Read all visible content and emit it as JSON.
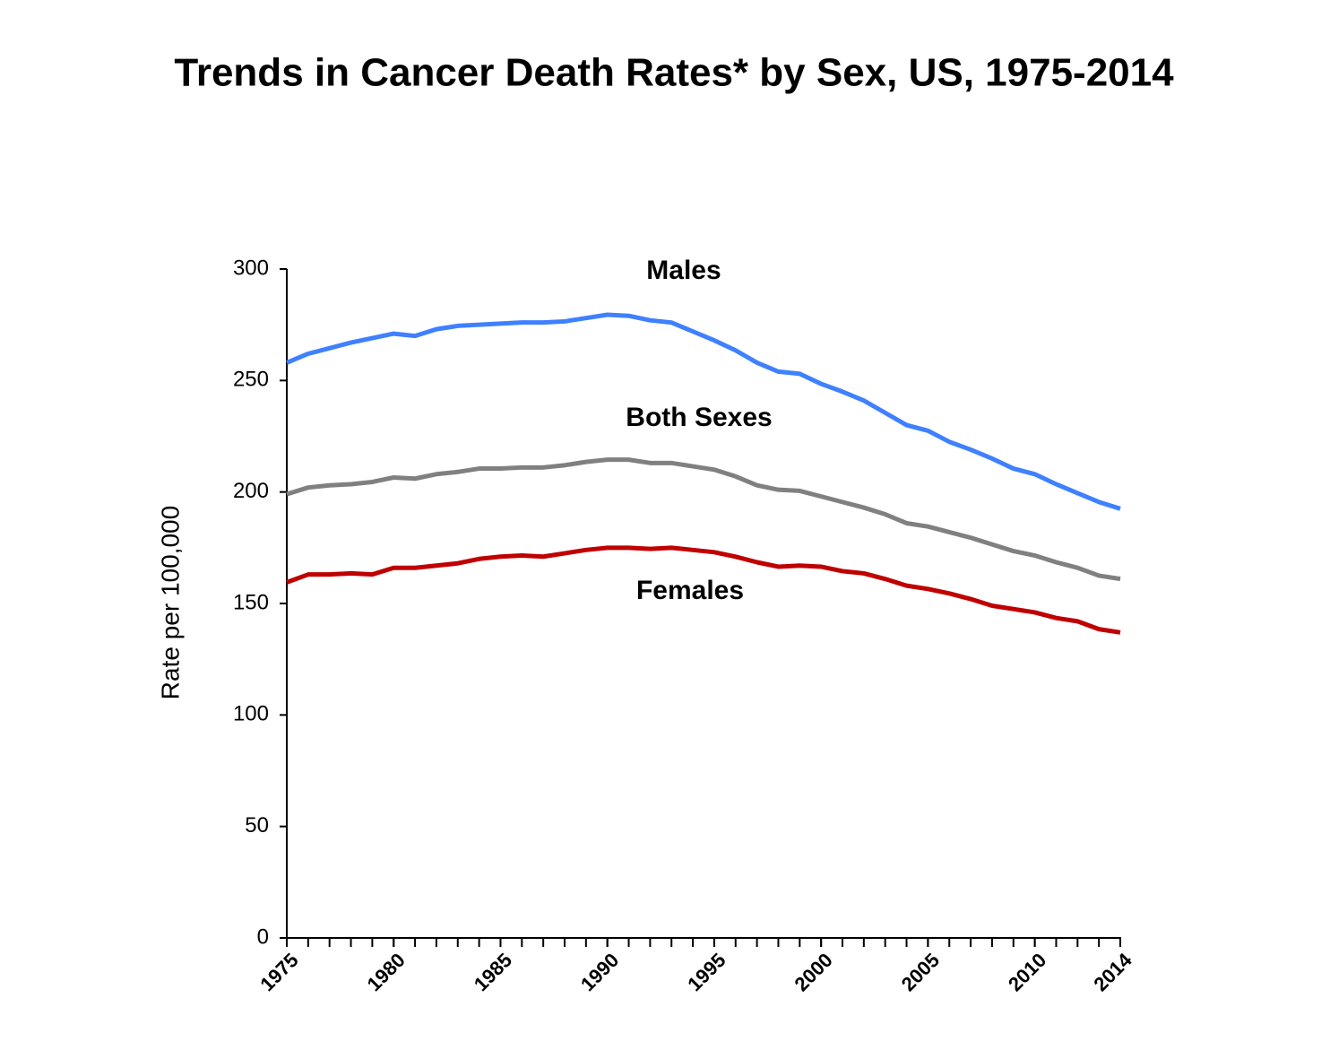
{
  "chart_data": {
    "type": "line",
    "title": "Trends in Cancer Death Rates* by Sex, US, 1975-2014",
    "y_label": "Rate per 100,000",
    "x": [
      1975,
      1976,
      1977,
      1978,
      1979,
      1980,
      1981,
      1982,
      1983,
      1984,
      1985,
      1986,
      1987,
      1988,
      1989,
      1990,
      1991,
      1992,
      1993,
      1994,
      1995,
      1996,
      1997,
      1998,
      1999,
      2000,
      2001,
      2002,
      2003,
      2004,
      2005,
      2006,
      2007,
      2008,
      2009,
      2010,
      2011,
      2012,
      2013,
      2014
    ],
    "series": [
      {
        "name": "Males",
        "color": "#3f80ff",
        "values": [
          258,
          262,
          264.5,
          267,
          269,
          271,
          270,
          273,
          274.5,
          275,
          275.5,
          276,
          276,
          276.5,
          278,
          279.5,
          279,
          277,
          276,
          272,
          268,
          263.5,
          258,
          254,
          253,
          248.5,
          245,
          241,
          235.5,
          230,
          227.5,
          222.5,
          219,
          215,
          210.5,
          208,
          203.5,
          199.5,
          195.5,
          192.5
        ]
      },
      {
        "name": "Both Sexes",
        "color": "#808080",
        "values": [
          199,
          202,
          203,
          203.5,
          204.5,
          206.5,
          206,
          208,
          209,
          210.5,
          210.5,
          211,
          211,
          212,
          213.5,
          214.5,
          214.5,
          213,
          213,
          211.5,
          210,
          207,
          203,
          201,
          200.5,
          198,
          195.5,
          193,
          190,
          186,
          184.5,
          182,
          179.5,
          176.5,
          173.5,
          171.5,
          168.5,
          166,
          162.5,
          161
        ]
      },
      {
        "name": "Females",
        "color": "#c00000",
        "values": [
          159.5,
          163,
          163,
          163.5,
          163,
          166,
          166,
          167,
          168,
          170,
          171,
          171.5,
          171,
          172.5,
          174,
          175,
          175,
          174.5,
          175,
          174,
          173,
          171,
          168.5,
          166.5,
          167,
          166.5,
          164.5,
          163.5,
          161,
          158,
          156.5,
          154.5,
          152,
          149,
          147.5,
          146,
          143.5,
          142,
          138.5,
          137
        ]
      }
    ],
    "xlim": [
      1975,
      2014
    ],
    "xticks": [
      1975,
      1980,
      1985,
      1990,
      1995,
      2000,
      2005,
      2010,
      2014
    ],
    "ylim": [
      0,
      300
    ],
    "yticks": [
      0,
      50,
      100,
      150,
      200,
      250,
      300
    ],
    "grid": false
  }
}
